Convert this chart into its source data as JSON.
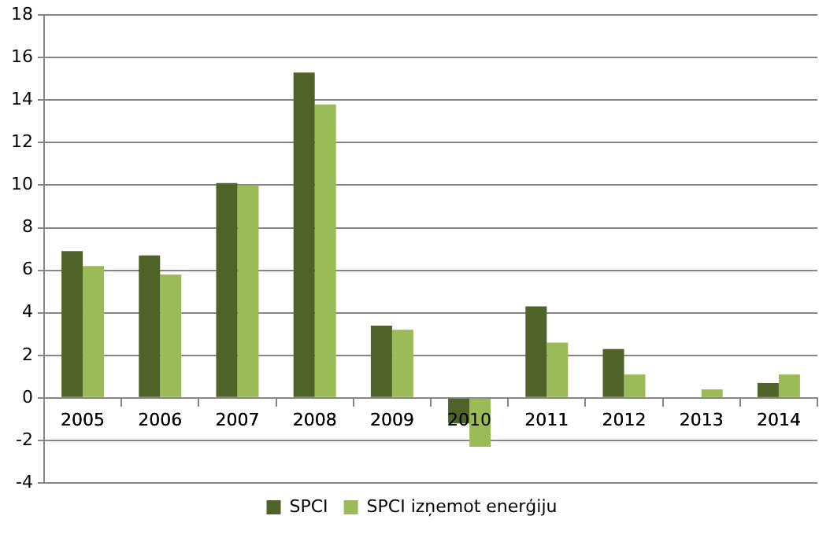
{
  "chart_data": {
    "type": "bar",
    "categories": [
      "2005",
      "2006",
      "2007",
      "2008",
      "2009",
      "2010",
      "2011",
      "2012",
      "2013",
      "2014"
    ],
    "series": [
      {
        "name": "SPCI",
        "color": "#4f6228",
        "values": [
          6.9,
          6.7,
          10.1,
          15.3,
          3.4,
          -1.2,
          4.3,
          2.3,
          0,
          0.7
        ]
      },
      {
        "name": "SPCI izņemot enerģiju",
        "color": "#9bbb59",
        "values": [
          6.2,
          5.8,
          10.0,
          13.8,
          3.2,
          -2.3,
          2.6,
          1.1,
          0.4,
          1.1
        ]
      }
    ],
    "ylim": [
      -4,
      18
    ],
    "yticks": [
      -4,
      -2,
      0,
      2,
      4,
      6,
      8,
      10,
      12,
      14,
      16,
      18
    ],
    "grid": "y",
    "legend": "bottom"
  }
}
